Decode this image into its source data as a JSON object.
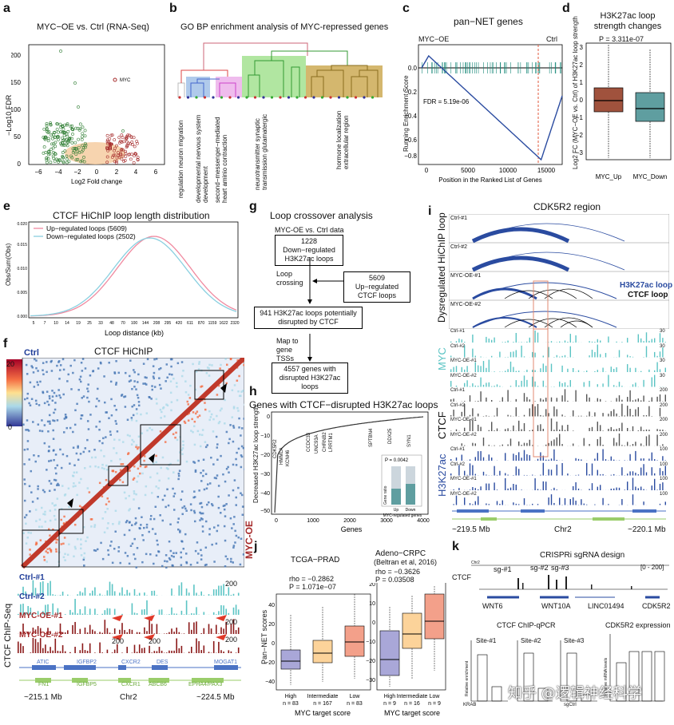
{
  "panels": {
    "a": {
      "label": "a",
      "title": "MYC−OE vs. Ctrl (RNA-Seq)",
      "xlabel": "Log2 Fold change",
      "ylabel": "−Log10 FDR",
      "xticks": [
        "−6",
        "−4",
        "−2",
        "0",
        "2",
        "4",
        "6"
      ],
      "yticks": [
        "0",
        "50",
        "100",
        "150",
        "200"
      ],
      "annot": "MYC"
    },
    "b": {
      "label": "b",
      "title": "GO BP enrichment analysis of MYC-repressed genes",
      "terms": [
        "regulation neuron migration",
        "developmental nervous system development",
        "second−messenger−mediated heart aminio contraction",
        "neurotransmitter synaptic transmission glutamatergic",
        "hormone localization extracellular region"
      ]
    },
    "c": {
      "label": "c",
      "title": "pan−NET genes",
      "left": "MYC−OE",
      "right": "Ctrl",
      "fdr": "FDR = 5.19e-06",
      "ylabel": "Running Enrichment Score",
      "xlabel": "Position in the Ranked List of Genes",
      "xticks": [
        "0",
        "5000",
        "10000",
        "15000"
      ],
      "yticks": [
        "0.0",
        "−0.2",
        "−0.4",
        "−0.6",
        "−0.8"
      ]
    },
    "d": {
      "label": "d",
      "title": "H3K27ac loop strength changes",
      "pval": "P = 3.311e-07",
      "ylabel": "Log2 FC (MYC−OE vs. Ctrl) of H3K27ac loop strength",
      "cats": [
        "MYC_Up",
        "MYC_Down"
      ],
      "yticks": [
        "3",
        "2",
        "1",
        "0",
        "−1",
        "−2",
        "−3"
      ]
    },
    "e": {
      "label": "e",
      "title": "CTCF HiChIP loop length distribution",
      "legend": [
        "Up−regulated loops (5609)",
        "Down−regulated loops (2502)"
      ],
      "ylabel": "Obs/Sum(Obs)",
      "xlabel": "Loop distance (kb)",
      "xticks": [
        "5",
        "7",
        "10",
        "14",
        "19",
        "25",
        "33",
        "48",
        "70",
        "100",
        "144",
        "208",
        "295",
        "420",
        "611",
        "870",
        "1159",
        "1622",
        "2320"
      ],
      "yticks": [
        "0.000",
        "0.005",
        "0.010",
        "0.015",
        "0.020"
      ]
    },
    "f": {
      "label": "f",
      "title": "CTCF HiChIP",
      "ctrl": "Ctrl",
      "oe": "MYC-OE",
      "scale": [
        "20",
        "0"
      ],
      "tracks": [
        "Ctrl-#1",
        "Ctrl-#2",
        "MYC-OE-#1",
        "MYC-OE-#2"
      ],
      "trackmax": [
        "200",
        "200",
        "200",
        "200",
        "200"
      ],
      "chip": "CTCF ChIP-Seq",
      "genes_top": [
        "ATIC",
        "IGFBP2",
        "CXCR2",
        "DES",
        "MOGAT1"
      ],
      "genes_bottom": [
        "FN1",
        "IGFBP5",
        "CXCR1",
        "ABCB6",
        "EPHA4/PAX3"
      ],
      "coords": [
        "~215.1 Mb",
        "Chr2",
        "~224.5 Mb"
      ]
    },
    "g": {
      "label": "g",
      "title": "Loop crossover analysis",
      "sub": "MYC-OE vs. Ctrl data",
      "box1": "1228 Down−regulated H3K27ac loops",
      "side1": "Loop crossing",
      "box2": "5609 Up−regulated CTCF loops",
      "box3": "941 H3K27ac loops potentially disrupted by CTCF",
      "side2": "Map to gene TSSs",
      "box4": "4557 genes with disrupted H3K27ac loops"
    },
    "h": {
      "label": "h",
      "title": "Genes with CTCF−disrupted H3K27ac loops",
      "ylabel": "Decreased H3K27ac loop strength",
      "xlabel": "Genes",
      "xticks": [
        "0",
        "1000",
        "2000",
        "3000",
        "4000"
      ],
      "yticks": [
        "0",
        "−10",
        "−20",
        "−30",
        "−40",
        "−50"
      ],
      "genes": [
        "CDK5R2",
        "HMMLA",
        "KCNH6",
        "CCDC33",
        "UNC93A",
        "CHRNB2",
        "LRRTM1",
        "SPTBN4",
        "DDX25",
        "SYN1"
      ],
      "inset_p": "P = 0.0042",
      "inset_y": "Gene ratio",
      "inset_cats": [
        "Up",
        "Down"
      ],
      "inset_x": "MYC-regulated genes"
    },
    "i": {
      "label": "i",
      "title": "CDK5R2 region",
      "ylabel": "Dysregulated HiChIP loop",
      "legend": [
        "H3K27ac loop",
        "CTCF loop"
      ],
      "arcs": [
        "Ctrl-#1",
        "Ctrl-#2",
        "MYC-OE-#1",
        "MYC-OE-#2"
      ],
      "groups": [
        "MYC",
        "CTCF",
        "H3K27ac"
      ],
      "tracks": [
        "Ctrl-#1",
        "Ctrl-#2",
        "MYC-OE-#1",
        "MYC-OE-#2"
      ],
      "mx": [
        "30",
        "30",
        "30",
        "30",
        "200",
        "200",
        "200",
        "200",
        "100",
        "100",
        "100",
        "100"
      ],
      "coords": [
        "~219.5 Mb",
        "Chr2",
        "~220.1 Mb"
      ]
    },
    "j": {
      "label": "j",
      "t1": "TCGA−PRAD",
      "t1b": "rho = −0.2862",
      "t1c": "P = 1.071e−07",
      "t2": "Adeno−CRPC",
      "t2a": "(Beltran et al, 2016)",
      "t2b": "rho = −0.3626",
      "t2c": "P = 0.03508",
      "ylabel": "Pan−NET scores",
      "cats": [
        "High",
        "Intermediate",
        "Low"
      ],
      "n1": [
        "n = 83",
        "n = 167",
        "n = 83"
      ],
      "n2": [
        "n = 9",
        "n = 16",
        "n = 9"
      ],
      "xlabel": "MYC target score",
      "yticks1": [
        "40",
        "20",
        "0",
        "−20",
        "−40"
      ],
      "yticks2": [
        "20",
        "10",
        "0",
        "−10",
        "−20",
        "−30"
      ]
    },
    "k": {
      "label": "k",
      "title": "CRISPRi sgRNA design",
      "chr": "Chr2",
      "ctcf": "CTCF",
      "scale": "[0 - 200]",
      "sg": [
        "sg-#1",
        "sg-#2",
        "sg-#3"
      ],
      "genes": [
        "WNT6",
        "WNT10A",
        "LINC01494",
        "CDK5R2"
      ],
      "qpcr": "CTCF  ChIP-qPCR",
      "sites": [
        "Site-#1",
        "Site-#2",
        "Site-#3"
      ],
      "expr": "CDK5R2 expression",
      "yl1": "Relative enrichment",
      "yl2": "Relative mRNA levels",
      "kr": "KRAB",
      "ctl": "sgCtrl"
    },
    "watermark": "知乎 @逻辑神经科学"
  },
  "colors": {
    "oe": "#a52a2a",
    "ctrl": "#1f3d99",
    "green": "#2e7d32",
    "teal": "#5bc4c4",
    "blue": "#2a4ba0",
    "brown": "#7d2a1a"
  }
}
